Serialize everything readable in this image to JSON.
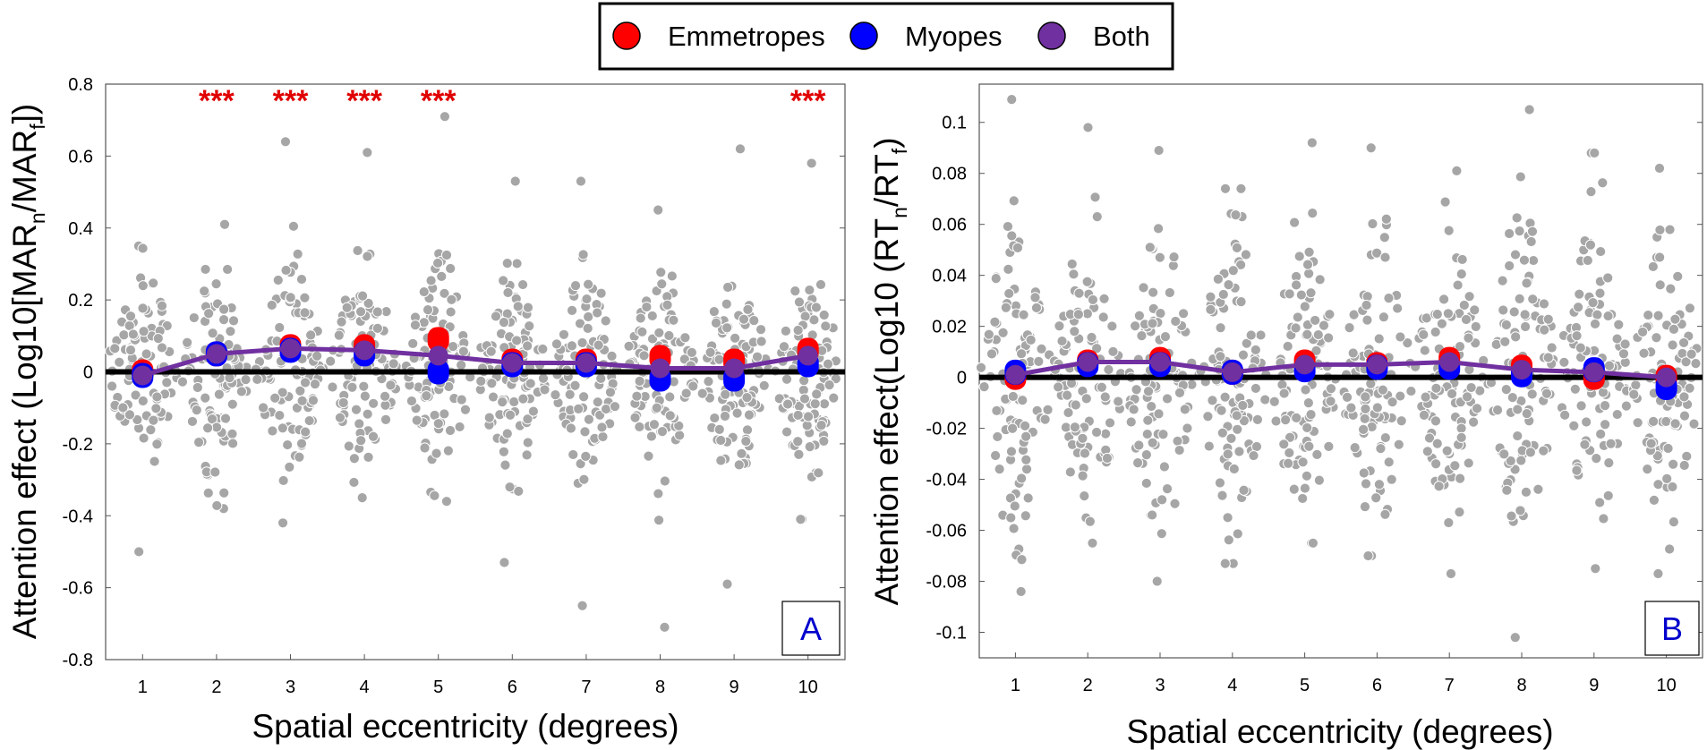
{
  "legend": {
    "items": [
      {
        "label": "Emmetropes",
        "color": "#ff0000"
      },
      {
        "label": "Myopes",
        "color": "#0000ff"
      },
      {
        "label": "Both",
        "color": "#7030a0"
      }
    ]
  },
  "colors": {
    "scatter": "#a6a6a6",
    "zero_line": "#000000",
    "significance": "#e00000",
    "panel_letter": "#0000cc"
  },
  "chart_data": [
    {
      "type": "scatter",
      "panel": "A",
      "title": "",
      "xlabel": "Spatial eccentricity (degrees)",
      "ylabel_parts": [
        "Attention effect (Log10[MAR",
        "n",
        "/MAR",
        "f",
        "])"
      ],
      "xlim": [
        0.5,
        10.5
      ],
      "ylim": [
        -0.8,
        0.8
      ],
      "x": [
        1,
        2,
        3,
        4,
        5,
        6,
        7,
        8,
        9,
        10
      ],
      "xtick_labels": [
        "1",
        "2",
        "3",
        "4",
        "5",
        "6",
        "7",
        "8",
        "9",
        "10"
      ],
      "ytick_values": [
        -0.8,
        -0.6,
        -0.4,
        -0.2,
        0,
        0.2,
        0.4,
        0.6,
        0.8
      ],
      "ytick_labels": [
        "-0.8",
        "-0.6",
        "-0.4",
        "-0.2",
        "0",
        "0.2",
        "0.4",
        "0.6",
        "0.8"
      ],
      "distributions": [
        {
          "min": -0.5,
          "max": 0.35,
          "sd": 0.14,
          "n": 90
        },
        {
          "min": -0.38,
          "max": 0.41,
          "sd": 0.14,
          "n": 95
        },
        {
          "min": -0.42,
          "max": 0.64,
          "sd": 0.14,
          "n": 95
        },
        {
          "min": -0.35,
          "max": 0.61,
          "sd": 0.15,
          "n": 95
        },
        {
          "min": -0.36,
          "max": 0.71,
          "sd": 0.15,
          "n": 95
        },
        {
          "min": -0.53,
          "max": 0.53,
          "sd": 0.14,
          "n": 95
        },
        {
          "min": -0.65,
          "max": 0.53,
          "sd": 0.14,
          "n": 95
        },
        {
          "min": -0.71,
          "max": 0.45,
          "sd": 0.14,
          "n": 95
        },
        {
          "min": -0.59,
          "max": 0.62,
          "sd": 0.14,
          "n": 95
        },
        {
          "min": -0.41,
          "max": 0.58,
          "sd": 0.14,
          "n": 95
        }
      ],
      "series": [
        {
          "name": "Emmetropes",
          "values": [
            0.0,
            0.05,
            0.07,
            0.07,
            0.09,
            0.03,
            0.03,
            0.04,
            0.03,
            0.06
          ]
        },
        {
          "name": "Myopes",
          "values": [
            -0.01,
            0.05,
            0.06,
            0.05,
            0.0,
            0.02,
            0.02,
            -0.02,
            -0.02,
            0.02
          ]
        },
        {
          "name": "Both",
          "values": [
            -0.01,
            0.05,
            0.065,
            0.06,
            0.045,
            0.025,
            0.025,
            0.01,
            0.01,
            0.045
          ]
        }
      ],
      "significance": [
        {
          "x": 2,
          "label": "***"
        },
        {
          "x": 3,
          "label": "***"
        },
        {
          "x": 4,
          "label": "***"
        },
        {
          "x": 5,
          "label": "***"
        },
        {
          "x": 10,
          "label": "***"
        }
      ],
      "panel_letter": "A"
    },
    {
      "type": "scatter",
      "panel": "B",
      "title": "",
      "xlabel": "Spatial eccentricity (degrees)",
      "ylabel_parts": [
        "Attention effect(Log10 (RT",
        "n",
        "/RT",
        "f",
        ")"
      ],
      "xlim": [
        0.5,
        10.5
      ],
      "ylim": [
        -0.11,
        0.115
      ],
      "x": [
        1,
        2,
        3,
        4,
        5,
        6,
        7,
        8,
        9,
        10
      ],
      "xtick_labels": [
        "1",
        "2",
        "3",
        "4",
        "5",
        "6",
        "7",
        "8",
        "9",
        "10"
      ],
      "ytick_values": [
        -0.1,
        -0.08,
        -0.06,
        -0.04,
        -0.02,
        0,
        0.02,
        0.04,
        0.06,
        0.08,
        0.1
      ],
      "ytick_labels": [
        "-0.1",
        "-0.08",
        "-0.06",
        "-0.04",
        "-0.02",
        "0",
        "0.02",
        "0.04",
        "0.06",
        "0.08",
        "0.1"
      ],
      "distributions": [
        {
          "min": -0.084,
          "max": 0.109,
          "sd": 0.03,
          "n": 95
        },
        {
          "min": -0.065,
          "max": 0.098,
          "sd": 0.028,
          "n": 95
        },
        {
          "min": -0.08,
          "max": 0.089,
          "sd": 0.03,
          "n": 95
        },
        {
          "min": -0.073,
          "max": 0.074,
          "sd": 0.028,
          "n": 95
        },
        {
          "min": -0.065,
          "max": 0.092,
          "sd": 0.028,
          "n": 95
        },
        {
          "min": -0.07,
          "max": 0.09,
          "sd": 0.028,
          "n": 95
        },
        {
          "min": -0.077,
          "max": 0.081,
          "sd": 0.028,
          "n": 95
        },
        {
          "min": -0.102,
          "max": 0.105,
          "sd": 0.03,
          "n": 95
        },
        {
          "min": -0.075,
          "max": 0.088,
          "sd": 0.028,
          "n": 95
        },
        {
          "min": -0.077,
          "max": 0.082,
          "sd": 0.028,
          "n": 95
        }
      ],
      "series": [
        {
          "name": "Emmetropes",
          "values": [
            0.0,
            0.006,
            0.007,
            0.002,
            0.006,
            0.005,
            0.007,
            0.004,
            0.0,
            0.0
          ]
        },
        {
          "name": "Myopes",
          "values": [
            0.002,
            0.005,
            0.005,
            0.002,
            0.003,
            0.004,
            0.004,
            0.001,
            0.003,
            -0.004
          ]
        },
        {
          "name": "Both",
          "values": [
            0.001,
            0.006,
            0.006,
            0.002,
            0.005,
            0.005,
            0.006,
            0.003,
            0.002,
            0.0
          ]
        }
      ],
      "significance": [],
      "panel_letter": "B"
    }
  ]
}
